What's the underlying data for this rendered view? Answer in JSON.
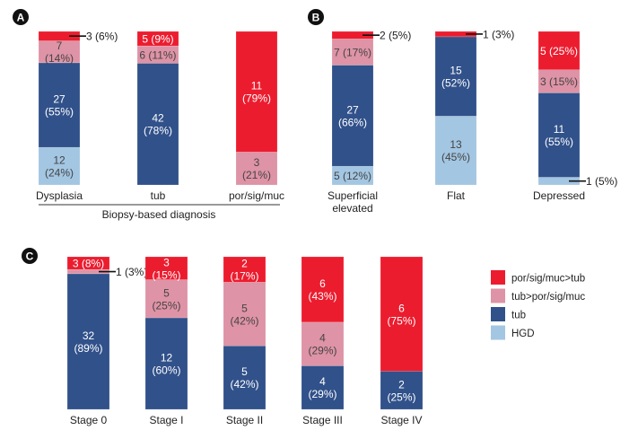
{
  "colors": {
    "por_gt_tub": "#ec1c2f",
    "tub_gt_por": "#de93a6",
    "tub": "#31518a",
    "hgd": "#a3c6e2"
  },
  "legend": [
    {
      "key": "por_gt_tub",
      "label": "por/sig/muc>tub"
    },
    {
      "key": "tub_gt_por",
      "label": "tub>por/sig/muc"
    },
    {
      "key": "tub",
      "label": "tub"
    },
    {
      "key": "hgd",
      "label": "HGD"
    }
  ],
  "chart_data": [
    {
      "type": "bar",
      "stacked": true,
      "panel": "A",
      "xlabel": "Biopsy-based diagnosis",
      "ylabel": "",
      "categories": [
        {
          "label": [
            "Dysplasia"
          ],
          "segments": [
            {
              "key": "hgd",
              "value": 12,
              "pct": 24,
              "lines": [
                "12",
                "(24%)"
              ],
              "mode": "inside"
            },
            {
              "key": "tub",
              "value": 27,
              "pct": 55,
              "lines": [
                "27",
                "(55%)"
              ],
              "mode": "inside"
            },
            {
              "key": "tub_gt_por",
              "value": 7,
              "pct": 14,
              "lines": [
                "7",
                "(14%)"
              ],
              "mode": "inside"
            },
            {
              "key": "por_gt_tub",
              "value": 3,
              "pct": 6,
              "lines": [
                "3 (6%)"
              ],
              "mode": "callout"
            }
          ]
        },
        {
          "label": [
            "tub"
          ],
          "segments": [
            {
              "key": "tub",
              "value": 42,
              "pct": 78,
              "lines": [
                "42",
                "(78%)"
              ],
              "mode": "inside"
            },
            {
              "key": "tub_gt_por",
              "value": 6,
              "pct": 11,
              "lines": [
                "6 (11%)"
              ],
              "mode": "inside"
            },
            {
              "key": "por_gt_tub",
              "value": 5,
              "pct": 9,
              "lines": [
                "5  (9%)"
              ],
              "mode": "inside"
            }
          ]
        },
        {
          "label": [
            "por/sig/muc"
          ],
          "segments": [
            {
              "key": "tub_gt_por",
              "value": 3,
              "pct": 21,
              "lines": [
                "3",
                "(21%)"
              ],
              "mode": "inside"
            },
            {
              "key": "por_gt_tub",
              "value": 11,
              "pct": 79,
              "lines": [
                "11",
                "(79%)"
              ],
              "mode": "inside"
            }
          ]
        }
      ]
    },
    {
      "type": "bar",
      "stacked": true,
      "panel": "B",
      "xlabel": "",
      "ylabel": "",
      "categories": [
        {
          "label": [
            "Superficial",
            "elevated"
          ],
          "segments": [
            {
              "key": "hgd",
              "value": 5,
              "pct": 12,
              "lines": [
                "5 (12%)"
              ],
              "mode": "inside"
            },
            {
              "key": "tub",
              "value": 27,
              "pct": 66,
              "lines": [
                "27",
                "(66%)"
              ],
              "mode": "inside"
            },
            {
              "key": "tub_gt_por",
              "value": 7,
              "pct": 17,
              "lines": [
                "7 (17%)"
              ],
              "mode": "inside"
            },
            {
              "key": "por_gt_tub",
              "value": 2,
              "pct": 5,
              "lines": [
                "2 (5%)"
              ],
              "mode": "callout"
            }
          ]
        },
        {
          "label": [
            "Flat"
          ],
          "segments": [
            {
              "key": "hgd",
              "value": 13,
              "pct": 45,
              "lines": [
                "13",
                "(45%)"
              ],
              "mode": "inside"
            },
            {
              "key": "tub",
              "value": 15,
              "pct": 52,
              "lines": [
                "15",
                "(52%)"
              ],
              "mode": "inside"
            },
            {
              "key": "por_gt_tub",
              "value": 1,
              "pct": 3,
              "lines": [
                "1 (3%)"
              ],
              "mode": "callout"
            }
          ]
        },
        {
          "label": [
            "Depressed"
          ],
          "segments": [
            {
              "key": "hgd",
              "value": 1,
              "pct": 5,
              "lines": [
                "1 (5%)"
              ],
              "mode": "callout"
            },
            {
              "key": "tub",
              "value": 11,
              "pct": 55,
              "lines": [
                "11",
                "(55%)"
              ],
              "mode": "inside"
            },
            {
              "key": "tub_gt_por",
              "value": 3,
              "pct": 15,
              "lines": [
                "3 (15%)"
              ],
              "mode": "inside"
            },
            {
              "key": "por_gt_tub",
              "value": 5,
              "pct": 25,
              "lines": [
                "5 (25%)"
              ],
              "mode": "inside"
            }
          ]
        }
      ]
    },
    {
      "type": "bar",
      "stacked": true,
      "panel": "C",
      "xlabel": "",
      "ylabel": "",
      "categories": [
        {
          "label": [
            "Stage 0"
          ],
          "segments": [
            {
              "key": "tub",
              "value": 32,
              "pct": 89,
              "lines": [
                "32",
                "(89%)"
              ],
              "mode": "inside"
            },
            {
              "key": "tub_gt_por",
              "value": 1,
              "pct": 3,
              "lines": [
                "1 (3%)"
              ],
              "mode": "callout"
            },
            {
              "key": "por_gt_tub",
              "value": 3,
              "pct": 8,
              "lines": [
                "3 (8%)"
              ],
              "mode": "inside"
            }
          ]
        },
        {
          "label": [
            "Stage I"
          ],
          "segments": [
            {
              "key": "tub",
              "value": 12,
              "pct": 60,
              "lines": [
                "12",
                "(60%)"
              ],
              "mode": "inside"
            },
            {
              "key": "tub_gt_por",
              "value": 5,
              "pct": 25,
              "lines": [
                "5",
                "(25%)"
              ],
              "mode": "inside"
            },
            {
              "key": "por_gt_tub",
              "value": 3,
              "pct": 15,
              "lines": [
                "3",
                "(15%)"
              ],
              "mode": "inside"
            }
          ]
        },
        {
          "label": [
            "Stage II"
          ],
          "segments": [
            {
              "key": "tub",
              "value": 5,
              "pct": 42,
              "lines": [
                "5",
                "(42%)"
              ],
              "mode": "inside"
            },
            {
              "key": "tub_gt_por",
              "value": 5,
              "pct": 42,
              "lines": [
                "5",
                "(42%)"
              ],
              "mode": "inside"
            },
            {
              "key": "por_gt_tub",
              "value": 2,
              "pct": 17,
              "lines": [
                "2",
                "(17%)"
              ],
              "mode": "inside"
            }
          ]
        },
        {
          "label": [
            "Stage III"
          ],
          "segments": [
            {
              "key": "tub",
              "value": 4,
              "pct": 29,
              "lines": [
                "4",
                "(29%)"
              ],
              "mode": "inside"
            },
            {
              "key": "tub_gt_por",
              "value": 4,
              "pct": 29,
              "lines": [
                "4",
                "(29%)"
              ],
              "mode": "inside"
            },
            {
              "key": "por_gt_tub",
              "value": 6,
              "pct": 43,
              "lines": [
                "6",
                "(43%)"
              ],
              "mode": "inside"
            }
          ]
        },
        {
          "label": [
            "Stage IV"
          ],
          "segments": [
            {
              "key": "tub",
              "value": 2,
              "pct": 25,
              "lines": [
                "2",
                "(25%)"
              ],
              "mode": "inside"
            },
            {
              "key": "por_gt_tub",
              "value": 6,
              "pct": 75,
              "lines": [
                "6",
                "(75%)"
              ],
              "mode": "inside"
            }
          ]
        }
      ]
    }
  ]
}
